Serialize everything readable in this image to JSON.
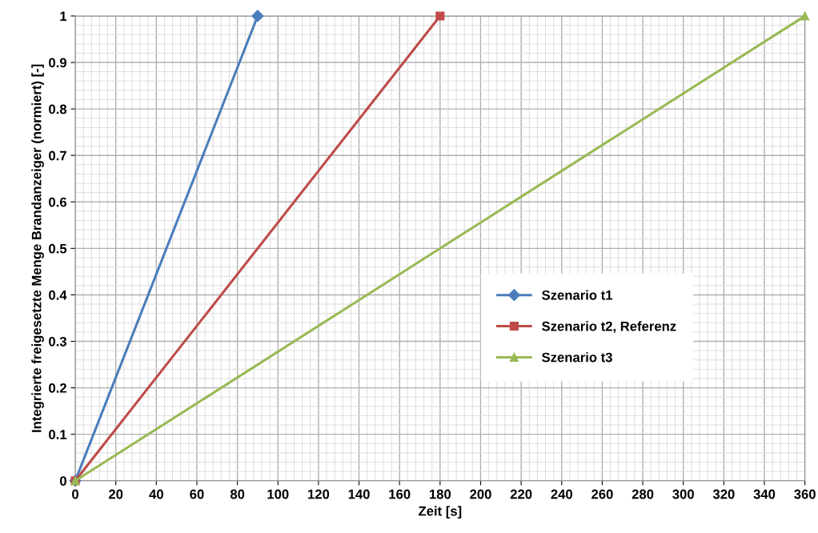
{
  "chart_data": {
    "type": "line",
    "xlabel": "Zeit [s]",
    "ylabel": "Integrierte freigesetzte Menge Brandanzeiger (normiert) [-]",
    "series": [
      {
        "name": "Szenario t1",
        "color": "#4a7ebb",
        "marker": "diamond",
        "x": [
          0,
          90
        ],
        "values": [
          0,
          1
        ]
      },
      {
        "name": "Szenario t2, Referenz",
        "color": "#be4b48",
        "marker": "square",
        "x": [
          0,
          180
        ],
        "values": [
          0,
          1
        ]
      },
      {
        "name": "Szenario t3",
        "color": "#98b954",
        "marker": "triangle",
        "x": [
          0,
          360
        ],
        "values": [
          0,
          1
        ]
      }
    ],
    "xlim": [
      0,
      360
    ],
    "xticks": [
      0,
      20,
      40,
      60,
      80,
      100,
      120,
      140,
      160,
      180,
      200,
      220,
      240,
      260,
      280,
      300,
      320,
      340,
      360
    ],
    "ylim": [
      0,
      1
    ],
    "yticks": [
      0,
      0.1,
      0.2,
      0.3,
      0.4,
      0.5,
      0.6,
      0.7,
      0.8,
      0.9,
      1
    ],
    "grid": true,
    "legend": "right",
    "line_style": "solid"
  }
}
